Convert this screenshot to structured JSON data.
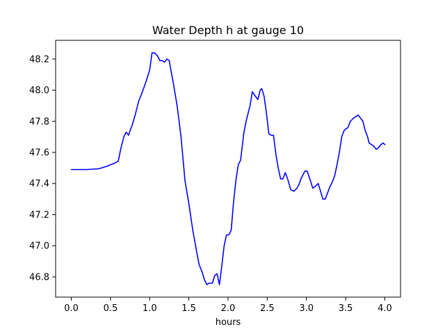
{
  "chart_data": {
    "type": "line",
    "title": "Water Depth h at gauge 10",
    "xlabel": "hours",
    "ylabel": "",
    "xlim": [
      -0.2,
      4.2
    ],
    "ylim": [
      46.67,
      48.32
    ],
    "xticks": [
      0.0,
      0.5,
      1.0,
      1.5,
      2.0,
      2.5,
      3.0,
      3.5,
      4.0
    ],
    "xtick_labels": [
      "0.0",
      "0.5",
      "1.0",
      "1.5",
      "2.0",
      "2.5",
      "3.0",
      "3.5",
      "4.0"
    ],
    "yticks": [
      46.8,
      47.0,
      47.2,
      47.4,
      47.6,
      47.8,
      48.0,
      48.2
    ],
    "ytick_labels": [
      "46.8",
      "47.0",
      "47.2",
      "47.4",
      "47.6",
      "47.8",
      "48.0",
      "48.2"
    ],
    "grid": false,
    "series": [
      {
        "name": "",
        "color": "#0000ff",
        "x": [
          0.0,
          0.2,
          0.35,
          0.45,
          0.55,
          0.6,
          0.63,
          0.67,
          0.7,
          0.73,
          0.75,
          0.78,
          0.82,
          0.86,
          0.9,
          0.95,
          1.0,
          1.03,
          1.06,
          1.1,
          1.13,
          1.16,
          1.19,
          1.22,
          1.25,
          1.27,
          1.3,
          1.35,
          1.4,
          1.45,
          1.5,
          1.55,
          1.6,
          1.63,
          1.67,
          1.7,
          1.73,
          1.76,
          1.8,
          1.83,
          1.86,
          1.89,
          1.92,
          1.95,
          1.98,
          2.01,
          2.04,
          2.07,
          2.1,
          2.13,
          2.16,
          2.2,
          2.23,
          2.25,
          2.28,
          2.31,
          2.35,
          2.38,
          2.41,
          2.43,
          2.46,
          2.49,
          2.52,
          2.55,
          2.58,
          2.61,
          2.64,
          2.67,
          2.7,
          2.73,
          2.76,
          2.8,
          2.84,
          2.88,
          2.91,
          2.93,
          2.95,
          2.98,
          3.01,
          3.05,
          3.08,
          3.11,
          3.15,
          3.18,
          3.21,
          3.24,
          3.27,
          3.3,
          3.33,
          3.36,
          3.39,
          3.42,
          3.45,
          3.48,
          3.5,
          3.53,
          3.56,
          3.6,
          3.63,
          3.66,
          3.69,
          3.72,
          3.75,
          3.78,
          3.8,
          3.83,
          3.86,
          3.89,
          3.92,
          3.95,
          3.98,
          4.0
        ],
        "y": [
          47.49,
          47.49,
          47.495,
          47.51,
          47.53,
          47.545,
          47.62,
          47.7,
          47.73,
          47.71,
          47.74,
          47.78,
          47.85,
          47.93,
          47.98,
          48.05,
          48.13,
          48.24,
          48.24,
          48.22,
          48.19,
          48.19,
          48.18,
          48.2,
          48.19,
          48.13,
          48.05,
          47.9,
          47.7,
          47.42,
          47.27,
          47.1,
          46.96,
          46.88,
          46.83,
          46.78,
          46.75,
          46.76,
          46.76,
          46.81,
          46.82,
          46.75,
          46.87,
          47.0,
          47.07,
          47.07,
          47.1,
          47.28,
          47.42,
          47.52,
          47.55,
          47.72,
          47.8,
          47.84,
          47.9,
          47.99,
          47.96,
          47.94,
          48.0,
          48.01,
          47.96,
          47.85,
          47.72,
          47.71,
          47.71,
          47.59,
          47.5,
          47.43,
          47.43,
          47.47,
          47.43,
          47.36,
          47.35,
          47.37,
          47.4,
          47.43,
          47.45,
          47.48,
          47.48,
          47.42,
          47.37,
          47.38,
          47.4,
          47.35,
          47.3,
          47.3,
          47.34,
          47.38,
          47.41,
          47.45,
          47.52,
          47.6,
          47.7,
          47.74,
          47.75,
          47.76,
          47.8,
          47.82,
          47.83,
          47.84,
          47.82,
          47.8,
          47.74,
          47.7,
          47.66,
          47.65,
          47.64,
          47.62,
          47.63,
          47.65,
          47.66,
          47.65
        ]
      }
    ]
  }
}
